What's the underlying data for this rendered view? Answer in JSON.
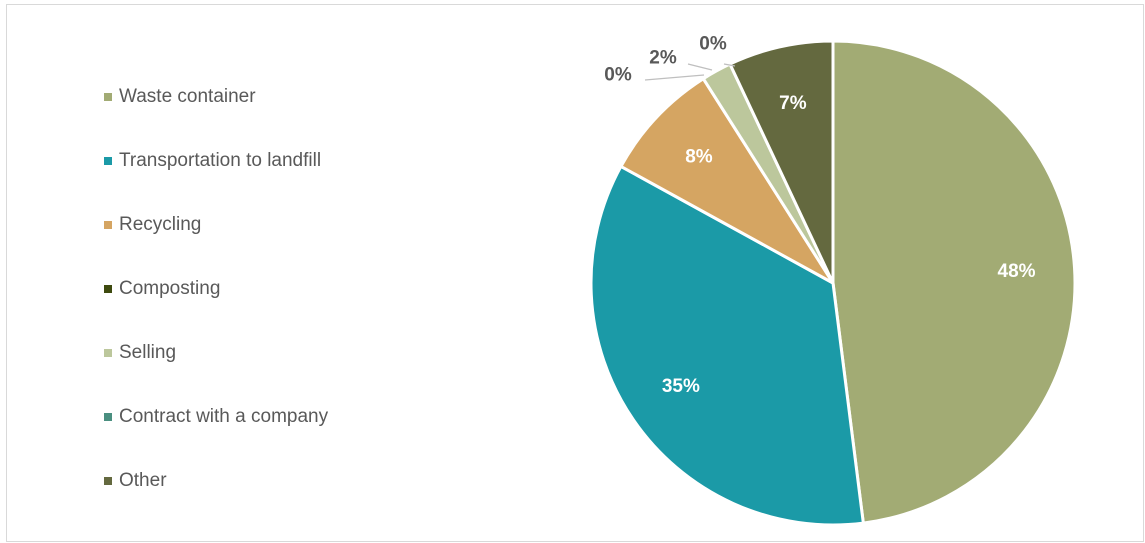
{
  "chart_data": {
    "type": "pie",
    "legend_position": "left",
    "start_angle_deg": 0,
    "direction": "clockwise",
    "slices": [
      {
        "label": "Waste container",
        "value": 48,
        "display": "48%",
        "color": "#a2ab74",
        "label_color": "#ffffff"
      },
      {
        "label": "Transportation to landfill",
        "value": 35,
        "display": "35%",
        "color": "#1b9aa7",
        "label_color": "#ffffff"
      },
      {
        "label": "Recycling",
        "value": 8,
        "display": "8%",
        "color": "#d5a562",
        "label_color": "#ffffff"
      },
      {
        "label": "Composting",
        "value": 0,
        "display": "0%",
        "color": "#3e4a0f",
        "label_color": "#595959"
      },
      {
        "label": "Selling",
        "value": 2,
        "display": "2%",
        "color": "#bcc79c",
        "label_color": "#595959"
      },
      {
        "label": "Contract with a company",
        "value": 0,
        "display": "0%",
        "color": "#4a8f80",
        "label_color": "#595959"
      },
      {
        "label": "Other",
        "value": 7,
        "display": "7%",
        "color": "#64693f",
        "label_color": "#ffffff"
      }
    ]
  }
}
